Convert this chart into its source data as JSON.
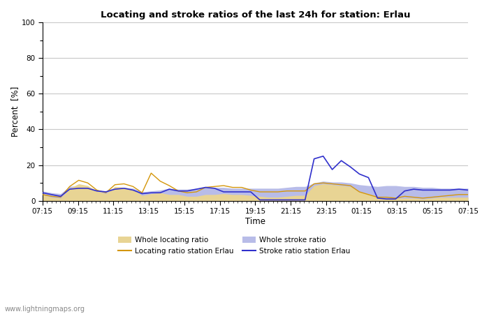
{
  "title": "Locating and stroke ratios of the last 24h for station: Erlau",
  "xlabel": "Time",
  "ylabel": "Percent  [%]",
  "xlim": [
    0,
    48
  ],
  "ylim": [
    0,
    100
  ],
  "yticks_major": [
    0,
    20,
    40,
    60,
    80,
    100
  ],
  "yticks_minor_labels": [
    10,
    30,
    50,
    70,
    90
  ],
  "xtick_labels": [
    "07:15",
    "09:15",
    "11:15",
    "13:15",
    "15:15",
    "17:15",
    "19:15",
    "21:15",
    "23:15",
    "01:15",
    "03:15",
    "05:15",
    "07:15"
  ],
  "watermark": "www.lightningmaps.org",
  "locating_fill_color": "#e8d494",
  "stroke_fill_color": "#b8bce8",
  "locating_line_color": "#d4960a",
  "stroke_line_color": "#3030cc",
  "background_color": "#ffffff",
  "grid_color": "#c8c8c8",
  "whole_locating": [
    3.5,
    2.0,
    1.5,
    7.0,
    9.5,
    8.5,
    5.5,
    4.0,
    8.0,
    7.5,
    6.5,
    3.0,
    4.0,
    4.5,
    3.5,
    3.5,
    2.5,
    2.5,
    3.5,
    3.5,
    4.0,
    3.5,
    3.5,
    3.0,
    2.5,
    2.0,
    2.0,
    2.5,
    3.0,
    3.0,
    8.5,
    9.5,
    9.0,
    8.5,
    8.0,
    5.0,
    4.0,
    2.0,
    1.5,
    1.5,
    1.5,
    1.5,
    1.0,
    1.5,
    2.0,
    2.0,
    2.0,
    2.0
  ],
  "locating_station": [
    3.5,
    2.5,
    2.0,
    8.0,
    11.5,
    10.0,
    6.0,
    4.5,
    9.0,
    9.5,
    8.0,
    4.5,
    15.5,
    11.0,
    8.5,
    5.5,
    4.5,
    5.0,
    7.5,
    8.0,
    8.5,
    7.5,
    7.5,
    6.0,
    5.0,
    5.0,
    5.0,
    5.5,
    5.5,
    5.5,
    9.5,
    10.0,
    9.5,
    9.0,
    8.5,
    5.0,
    3.5,
    2.0,
    2.0,
    1.5,
    2.5,
    2.0,
    1.5,
    2.0,
    2.5,
    3.0,
    3.5,
    3.5
  ],
  "whole_stroke": [
    5.5,
    4.5,
    4.0,
    8.0,
    8.5,
    8.0,
    6.0,
    5.5,
    7.5,
    7.5,
    7.0,
    5.0,
    5.5,
    6.0,
    7.0,
    6.5,
    6.5,
    7.0,
    7.5,
    7.5,
    7.5,
    7.0,
    7.0,
    7.0,
    7.0,
    7.0,
    7.0,
    7.5,
    8.0,
    8.0,
    10.0,
    11.0,
    10.5,
    10.5,
    10.0,
    9.0,
    8.5,
    8.0,
    8.5,
    8.5,
    8.0,
    8.0,
    7.5,
    7.5,
    7.0,
    7.0,
    7.0,
    7.0
  ],
  "stroke_station": [
    4.5,
    3.5,
    2.5,
    6.5,
    7.0,
    7.0,
    5.5,
    5.0,
    6.5,
    7.0,
    6.0,
    4.0,
    4.5,
    4.5,
    6.5,
    5.5,
    5.5,
    6.5,
    7.5,
    7.0,
    5.0,
    5.0,
    5.0,
    5.0,
    0.5,
    0.5,
    0.5,
    0.5,
    0.5,
    0.5,
    23.5,
    25.0,
    17.5,
    22.5,
    19.0,
    15.0,
    13.0,
    1.5,
    1.0,
    1.0,
    5.5,
    6.5,
    6.0,
    6.0,
    6.0,
    6.0,
    6.5,
    6.0
  ]
}
